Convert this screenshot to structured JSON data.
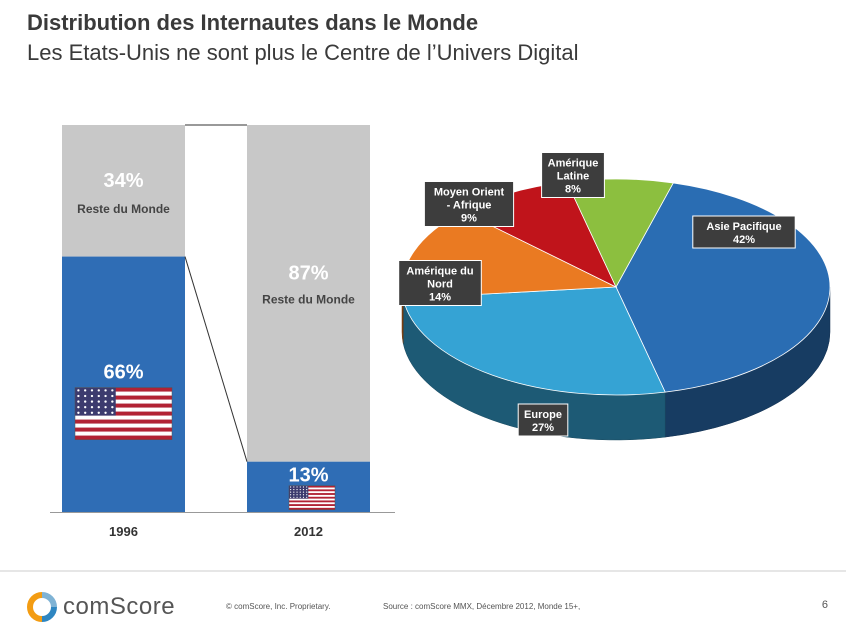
{
  "header": {
    "title": "Distribution des Internautes dans le Monde",
    "subtitle": "Les Etats-Unis ne sont plus le Centre de l’Univers Digital"
  },
  "chart_data": [
    {
      "type": "bar",
      "stacked": true,
      "categories": [
        "1996",
        "2012"
      ],
      "series": [
        {
          "name": "Reste du Monde",
          "values": [
            34,
            87
          ],
          "labels": [
            "34%",
            "87%"
          ],
          "color": "#c8c8c8"
        },
        {
          "name": "",
          "values": [
            66,
            13
          ],
          "labels": [
            "66%",
            "13%"
          ],
          "color": "#2f6db5"
        }
      ],
      "ylim": [
        0,
        100
      ],
      "icons": [
        "us-flag-icon",
        "us-flag-icon"
      ]
    },
    {
      "type": "pie",
      "style": "3d",
      "slices": [
        {
          "label": "Asie Pacifique",
          "display": "Asie Pacifique",
          "value": 42,
          "value_label": "42%",
          "color": "#2a6db3"
        },
        {
          "label": "Europe",
          "display": "Europe",
          "value": 27,
          "value_label": "27%",
          "color": "#35a3d4"
        },
        {
          "label": "Amérique du Nord",
          "display": "Amérique du Nord",
          "value": 14,
          "value_label": "14%",
          "color": "#ea7a22"
        },
        {
          "label": "Moyen Orient - Afrique",
          "display": "Moyen Orient - Afrique",
          "value": 9,
          "value_label": "9%",
          "color": "#c0141b"
        },
        {
          "label": "Amérique Latine",
          "display": "Amérique Latine",
          "value": 8,
          "value_label": "8%",
          "color": "#8cbf3f"
        }
      ]
    }
  ],
  "footer": {
    "logo_text": "comScore",
    "copyright": "© comScore, Inc.   Proprietary.",
    "source": "Source : comScore MMX, Décembre 2012, Monde 15+,",
    "page_number": "6"
  }
}
